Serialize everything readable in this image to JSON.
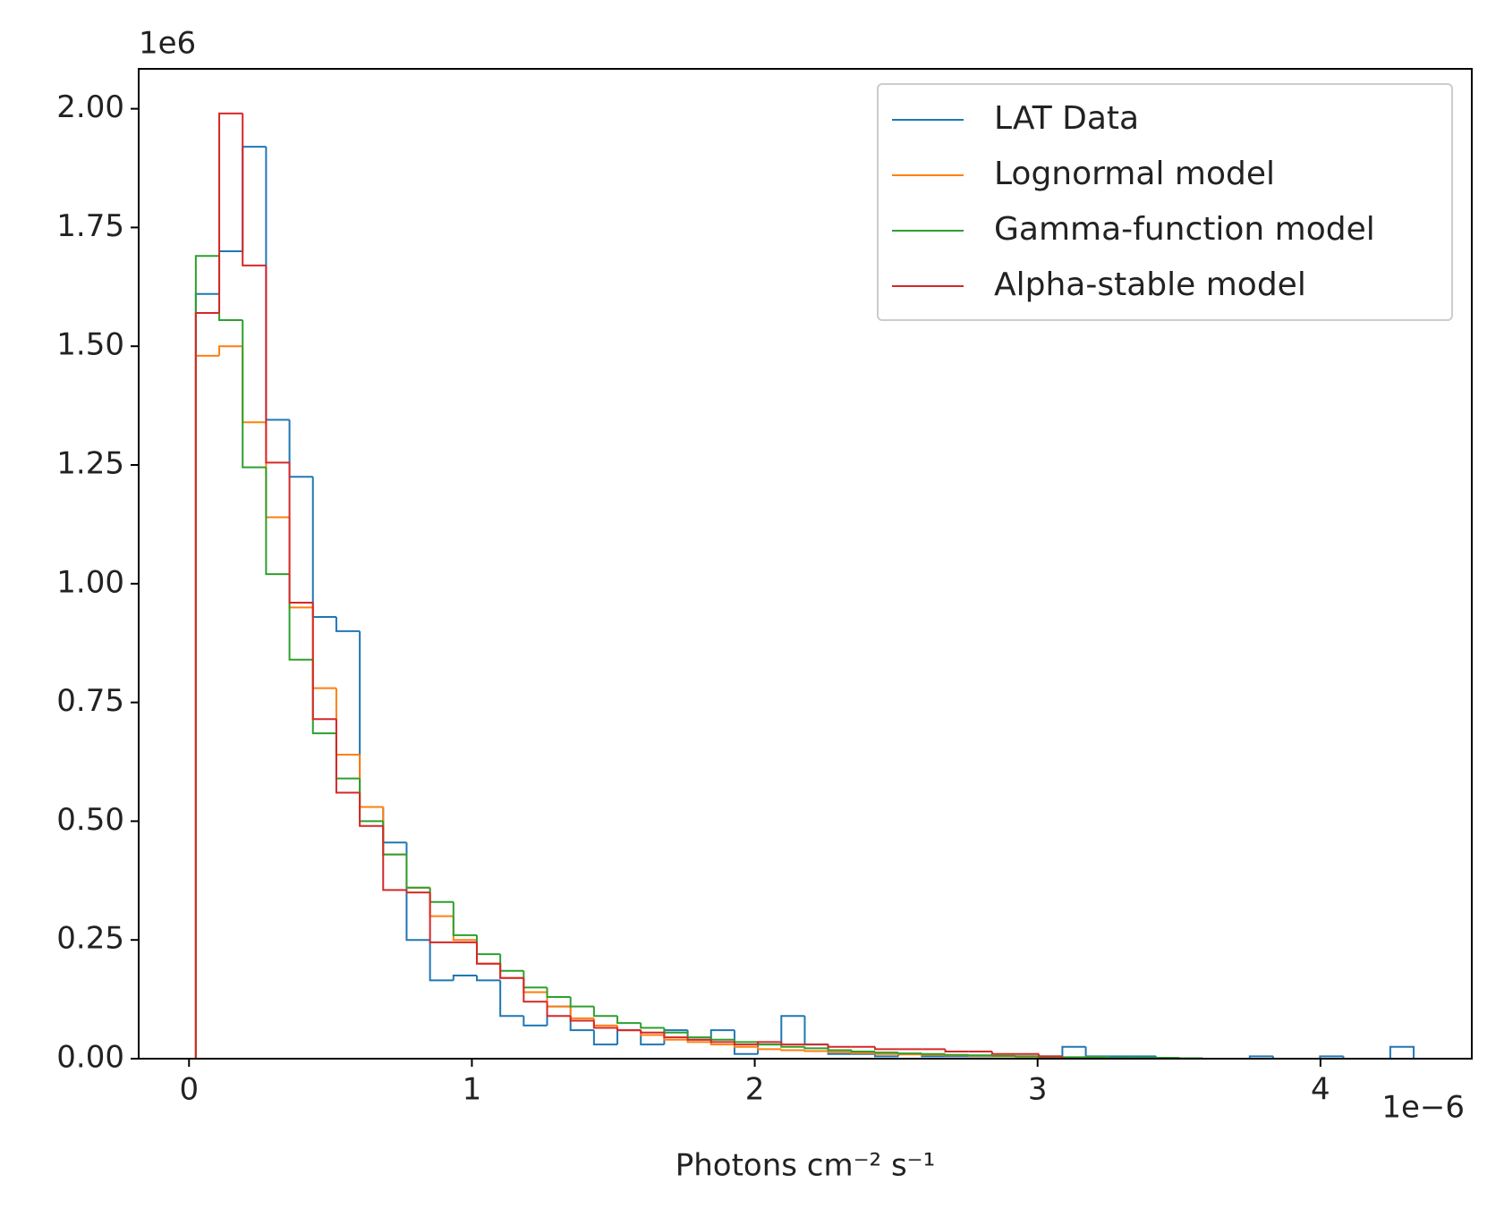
{
  "chart_data": {
    "type": "histogram",
    "histtype": "step",
    "xlabel": "Photons cm⁻² s⁻¹",
    "x_offset_text": "1e−6",
    "y_offset_text": "1e6",
    "xlim": [
      -0.178,
      4.535
    ],
    "ylim": [
      0,
      2.084
    ],
    "xticks": [
      0,
      1,
      2,
      3,
      4
    ],
    "yticks": [
      {
        "value": 0,
        "label": "0.00"
      },
      {
        "value": 0.25,
        "label": "0.25"
      },
      {
        "value": 0.5,
        "label": "0.50"
      },
      {
        "value": 0.75,
        "label": "0.75"
      },
      {
        "value": 1,
        "label": "1.00"
      },
      {
        "value": 1.25,
        "label": "1.25"
      },
      {
        "value": 1.5,
        "label": "1.50"
      },
      {
        "value": 1.75,
        "label": "1.75"
      },
      {
        "value": 2,
        "label": "2.00"
      }
    ],
    "legend": "upper right",
    "bins": [
      0.024,
      0.1068,
      0.1896,
      0.2724,
      0.3552,
      0.438,
      0.5208,
      0.6036,
      0.6864,
      0.7692,
      0.852,
      0.9348,
      1.0176,
      1.1004,
      1.1832,
      1.266,
      1.3488,
      1.4316,
      1.5144,
      1.5972,
      1.68,
      1.7628,
      1.8456,
      1.9284,
      2.0112,
      2.094,
      2.1768,
      2.2596,
      2.3424,
      2.4252,
      2.508,
      2.5908,
      2.6736,
      2.7564,
      2.8392,
      2.922,
      3.0048,
      3.0876,
      3.1704,
      3.2532,
      3.336,
      3.4188,
      3.5016,
      3.5844,
      3.6672,
      3.75,
      3.8328,
      3.9156,
      3.9984,
      4.0812,
      4.164,
      4.2468,
      4.3296
    ],
    "series": [
      {
        "name": "LAT Data",
        "color": "#1f77b4",
        "values": [
          1.61,
          1.7,
          1.92,
          1.345,
          1.225,
          0.93,
          0.9,
          0.53,
          0.455,
          0.25,
          0.165,
          0.175,
          0.165,
          0.09,
          0.07,
          0.11,
          0.06,
          0.03,
          0.06,
          0.03,
          0.06,
          0.04,
          0.06,
          0.01,
          0.03,
          0.09,
          0.03,
          0.01,
          0.01,
          0.005,
          0.01,
          0.005,
          0.005,
          0.005,
          0.005,
          0.005,
          0.005,
          0.025,
          0.005,
          0.005,
          0.005,
          0,
          0,
          0,
          0,
          0.005,
          0,
          0,
          0.005,
          0,
          0,
          0.025
        ]
      },
      {
        "name": "Lognormal model",
        "color": "#ff7f0e",
        "values": [
          1.48,
          1.5,
          1.34,
          1.14,
          0.95,
          0.78,
          0.64,
          0.53,
          0.43,
          0.36,
          0.3,
          0.25,
          0.2,
          0.17,
          0.14,
          0.11,
          0.085,
          0.07,
          0.06,
          0.05,
          0.04,
          0.035,
          0.03,
          0.025,
          0.02,
          0.018,
          0.016,
          0.014,
          0.012,
          0.01,
          0.009,
          0.008,
          0.007,
          0.006,
          0.005,
          0.004,
          0.004,
          0.003,
          0.003,
          0.002,
          0.002,
          0.002,
          0.001,
          0,
          0,
          0,
          0,
          0,
          0,
          0,
          0,
          0
        ]
      },
      {
        "name": "Gamma-function model",
        "color": "#2ca02c",
        "values": [
          1.69,
          1.555,
          1.245,
          1.02,
          0.84,
          0.685,
          0.59,
          0.5,
          0.43,
          0.36,
          0.33,
          0.26,
          0.22,
          0.185,
          0.15,
          0.13,
          0.11,
          0.09,
          0.075,
          0.065,
          0.055,
          0.045,
          0.04,
          0.035,
          0.03,
          0.025,
          0.022,
          0.018,
          0.015,
          0.013,
          0.011,
          0.01,
          0.008,
          0.007,
          0.006,
          0.005,
          0.004,
          0.003,
          0.003,
          0.002,
          0.002,
          0.002,
          0.001,
          0,
          0,
          0,
          0,
          0,
          0,
          0,
          0,
          0
        ]
      },
      {
        "name": "Alpha-stable model",
        "color": "#d62728",
        "values": [
          1.57,
          1.99,
          1.67,
          1.255,
          0.96,
          0.715,
          0.56,
          0.49,
          0.355,
          0.35,
          0.245,
          0.245,
          0.2,
          0.17,
          0.12,
          0.09,
          0.08,
          0.065,
          0.06,
          0.055,
          0.045,
          0.04,
          0.035,
          0.03,
          0.035,
          0.03,
          0.03,
          0.025,
          0.025,
          0.02,
          0.02,
          0.02,
          0.015,
          0.015,
          0.01,
          0.01,
          0.005,
          0,
          0,
          0,
          0,
          0,
          0,
          0,
          0,
          0,
          0,
          0,
          0,
          0,
          0,
          0
        ]
      }
    ]
  }
}
